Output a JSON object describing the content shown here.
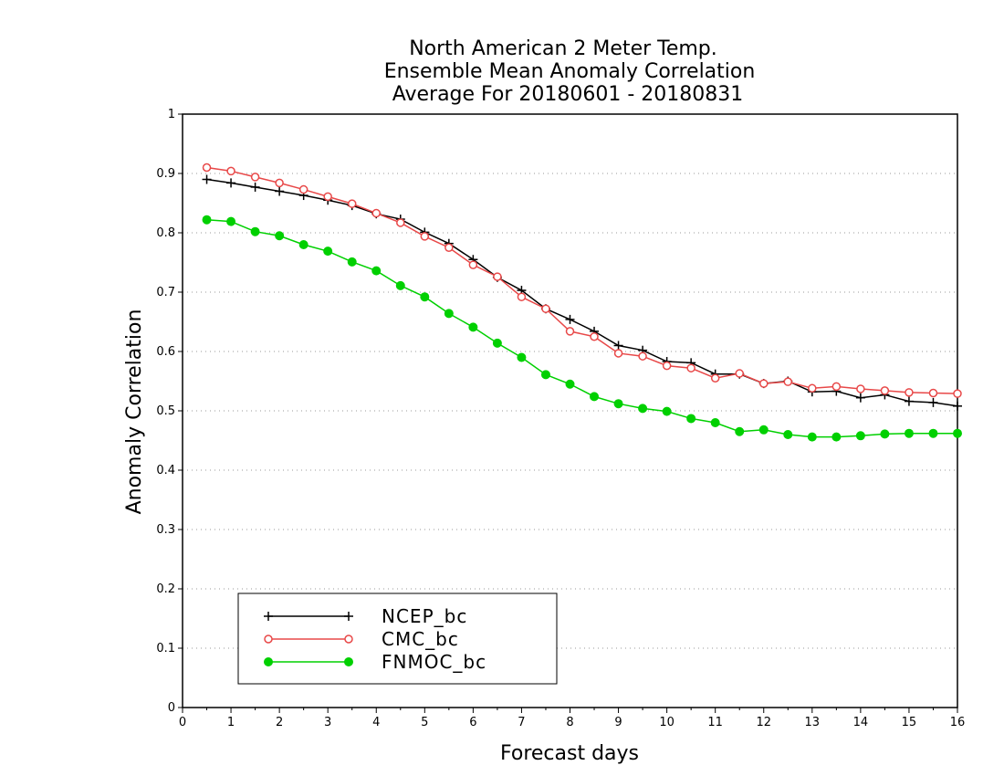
{
  "chart_data": {
    "type": "line",
    "title": [
      "North American 2 Meter Temp.",
      "Ensemble Mean Anomaly Correlation",
      "Average For 20180601 - 20180831"
    ],
    "xlabel": "Forecast days",
    "ylabel": "Anomaly Correlation",
    "xlim": [
      0,
      16
    ],
    "ylim": [
      0,
      1
    ],
    "x_ticks": [
      "0",
      "1",
      "2",
      "3",
      "4",
      "5",
      "6",
      "7",
      "8",
      "9",
      "10",
      "11",
      "12",
      "13",
      "14",
      "15",
      "16"
    ],
    "y_ticks": [
      "0",
      "0.1",
      "0.2",
      "0.3",
      "0.4",
      "0.5",
      "0.6",
      "0.7",
      "0.8",
      "0.9",
      "1"
    ],
    "grid": "horizontal dotted",
    "legend_position": "bottom-left",
    "x": [
      0.5,
      1,
      1.5,
      2,
      2.5,
      3,
      3.5,
      4,
      4.5,
      5,
      5.5,
      6,
      6.5,
      7,
      7.5,
      8,
      8.5,
      9,
      9.5,
      10,
      10.5,
      11,
      11.5,
      12,
      12.5,
      13,
      13.5,
      14,
      14.5,
      15,
      15.5,
      16
    ],
    "series": [
      {
        "name": "NCEP_bc",
        "color": "#000000",
        "marker": "plus",
        "values": [
          0.89,
          0.884,
          0.877,
          0.87,
          0.863,
          0.855,
          0.846,
          0.832,
          0.823,
          0.801,
          0.782,
          0.755,
          0.725,
          0.703,
          0.672,
          0.654,
          0.634,
          0.61,
          0.602,
          0.583,
          0.581,
          0.562,
          0.562,
          0.546,
          0.55,
          0.532,
          0.533,
          0.522,
          0.527,
          0.516,
          0.514,
          0.508
        ]
      },
      {
        "name": "CMC_bc",
        "color": "#e84848",
        "marker": "open-circle",
        "values": [
          0.91,
          0.904,
          0.894,
          0.884,
          0.873,
          0.861,
          0.849,
          0.833,
          0.817,
          0.794,
          0.775,
          0.746,
          0.726,
          0.692,
          0.672,
          0.634,
          0.625,
          0.597,
          0.592,
          0.576,
          0.572,
          0.555,
          0.563,
          0.546,
          0.549,
          0.538,
          0.541,
          0.537,
          0.534,
          0.531,
          0.53,
          0.529
        ]
      },
      {
        "name": "FNMOC_bc",
        "color": "#00d000",
        "marker": "filled-circle",
        "values": [
          0.822,
          0.819,
          0.802,
          0.795,
          0.78,
          0.769,
          0.751,
          0.736,
          0.711,
          0.692,
          0.664,
          0.641,
          0.614,
          0.59,
          0.561,
          0.545,
          0.524,
          0.512,
          0.504,
          0.499,
          0.487,
          0.48,
          0.465,
          0.468,
          0.46,
          0.456,
          0.456,
          0.458,
          0.461,
          0.462,
          0.462,
          0.462
        ]
      }
    ]
  }
}
